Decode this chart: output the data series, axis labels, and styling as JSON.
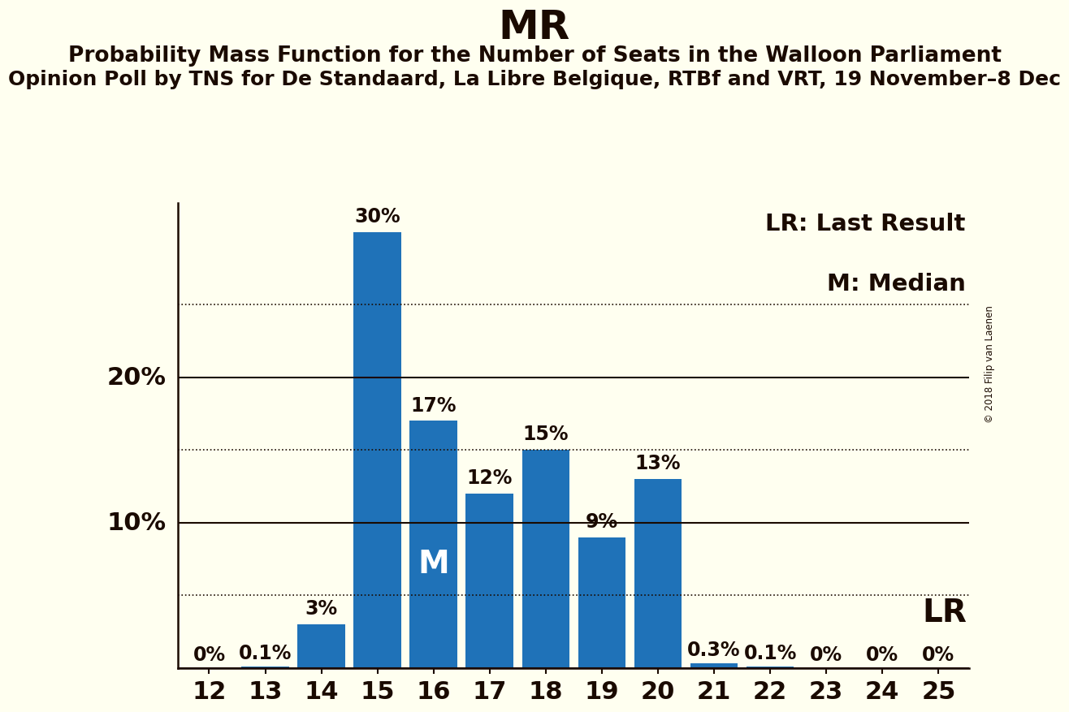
{
  "title": "MR",
  "subtitle1": "Probability Mass Function for the Number of Seats in the Walloon Parliament",
  "subtitle2": "Opinion Poll by TNS for De Standaard, La Libre Belgique, RTBf and VRT, 19 November–8 Dec",
  "copyright": "© 2018 Filip van Laenen",
  "categories": [
    12,
    13,
    14,
    15,
    16,
    17,
    18,
    19,
    20,
    21,
    22,
    23,
    24,
    25
  ],
  "values": [
    0.0,
    0.1,
    3.0,
    30.0,
    17.0,
    12.0,
    15.0,
    9.0,
    13.0,
    0.3,
    0.1,
    0.0,
    0.0,
    0.0
  ],
  "labels": [
    "0%",
    "0.1%",
    "3%",
    "30%",
    "17%",
    "12%",
    "15%",
    "9%",
    "13%",
    "0.3%",
    "0.1%",
    "0%",
    "0%",
    "0%"
  ],
  "bar_color": "#1F72B8",
  "background_color": "#FFFFF0",
  "text_color": "#1A0A00",
  "median_seat": 16,
  "median_label": "M",
  "lr_label": "LR",
  "ylim": [
    0,
    32
  ],
  "solid_yticks": [
    0,
    10,
    20
  ],
  "solid_ytick_labels": [
    "",
    "10%",
    "20%"
  ],
  "dotted_yticks": [
    5,
    15,
    25
  ],
  "title_fontsize": 36,
  "subtitle1_fontsize": 19,
  "subtitle2_fontsize": 18,
  "tick_fontsize": 22,
  "legend_fontsize": 21,
  "bar_label_fontsize": 17,
  "median_fontsize": 28
}
